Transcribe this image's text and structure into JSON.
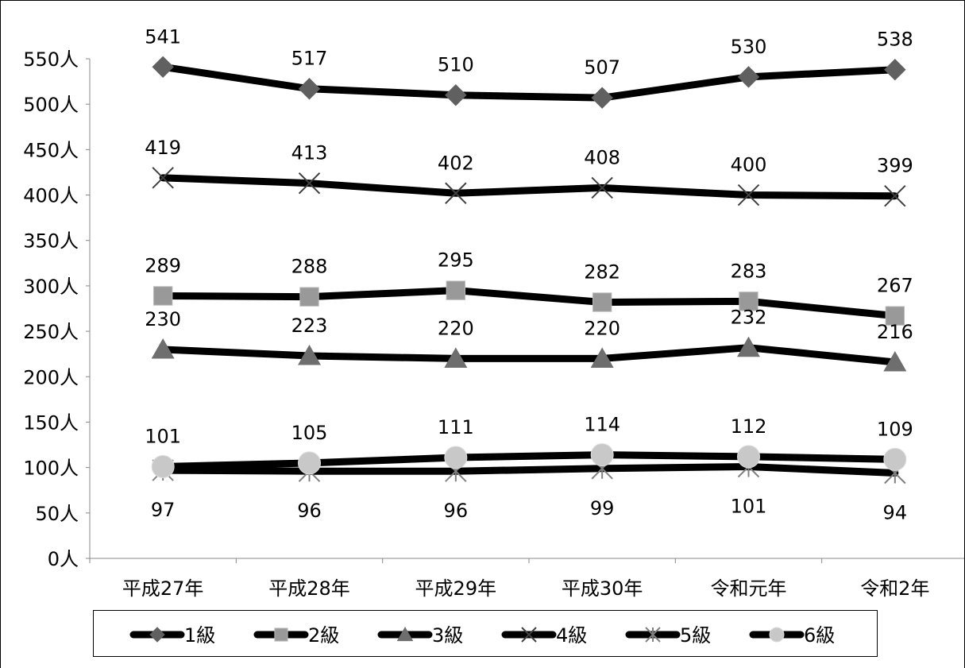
{
  "chart_data": {
    "type": "line",
    "title": "",
    "xlabel": "",
    "ylabel": "",
    "categories": [
      "平成27年",
      "平成28年",
      "平成29年",
      "平成30年",
      "令和元年",
      "令和2年"
    ],
    "y_ticks": [
      "0人",
      "50人",
      "100人",
      "150人",
      "200人",
      "250人",
      "300人",
      "350人",
      "400人",
      "450人",
      "500人",
      "550人"
    ],
    "ylim": [
      0,
      550
    ],
    "grid": false,
    "legend_position": "bottom",
    "series": [
      {
        "name": "1級",
        "marker": "diamond",
        "marker_color": "#606060",
        "values": [
          541,
          517,
          510,
          507,
          530,
          538
        ],
        "label_position": "above"
      },
      {
        "name": "2級",
        "marker": "square",
        "marker_color": "#999999",
        "values": [
          289,
          288,
          295,
          282,
          283,
          267
        ],
        "label_position": "above"
      },
      {
        "name": "3級",
        "marker": "triangle",
        "marker_color": "#6e6e6e",
        "values": [
          230,
          223,
          220,
          220,
          232,
          216
        ],
        "label_position": "above"
      },
      {
        "name": "4級",
        "marker": "x",
        "marker_color": "#404040",
        "values": [
          419,
          413,
          402,
          408,
          400,
          399
        ],
        "label_position": "above"
      },
      {
        "name": "5級",
        "marker": "star",
        "marker_color": "#808080",
        "values": [
          97,
          96,
          96,
          99,
          101,
          94
        ],
        "label_position": "below"
      },
      {
        "name": "6級",
        "marker": "circle",
        "marker_color": "#c8c8c8",
        "values": [
          101,
          105,
          111,
          114,
          112,
          109
        ],
        "label_position": "above"
      }
    ]
  }
}
